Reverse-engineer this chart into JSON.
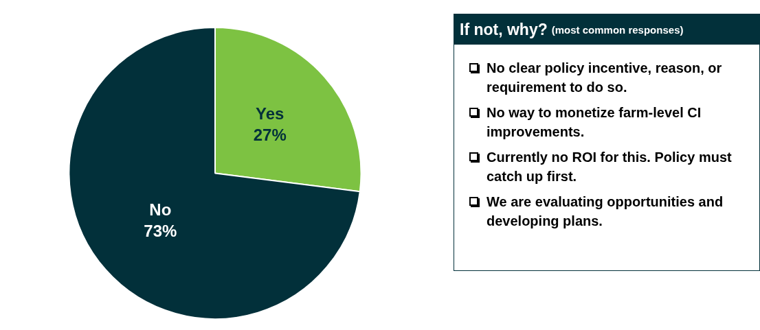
{
  "chart_data": {
    "type": "pie",
    "categories": [
      "Yes",
      "No"
    ],
    "values": [
      27,
      73
    ],
    "colors": [
      "#7dc242",
      "#02303a"
    ],
    "value_labels": [
      "27%",
      "73%"
    ],
    "annotations": [
      "If not, why?",
      "(most common responses)",
      "No clear policy incentive, reason, or requirement to do so.",
      "No way to monetize farm-level CI improvements.",
      "Currently no ROI for this. Policy must catch up first.",
      "We are evaluating opportunities and developing plans."
    ]
  }
}
